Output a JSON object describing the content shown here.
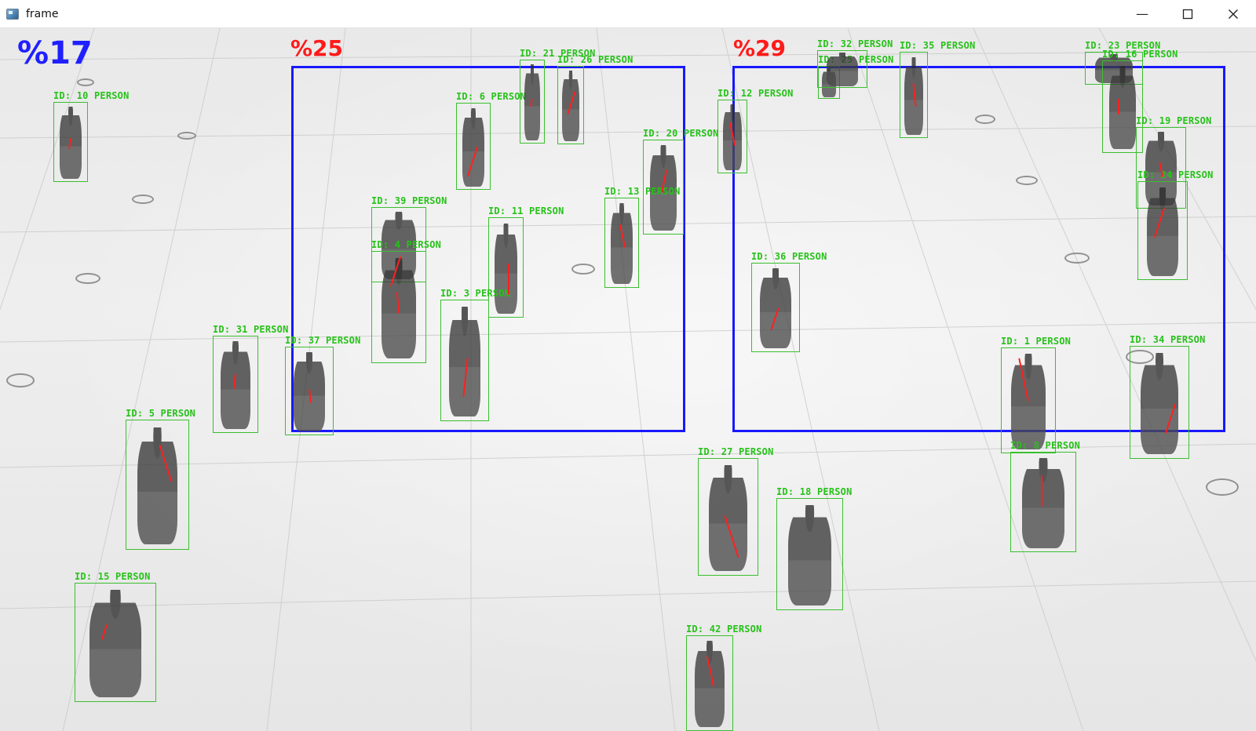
{
  "window": {
    "title": "frame",
    "app_icon": "window-app-icon",
    "controls": {
      "minimize_glyph": "—",
      "maximize_icon": "maximize-icon",
      "close_icon": "close-icon"
    }
  },
  "overlay": {
    "global_density": "%17",
    "zones": [
      {
        "name": "zone-left",
        "density": "%25"
      },
      {
        "name": "zone-right",
        "density": "%29"
      }
    ],
    "colors": {
      "zone_box": "#1818ff",
      "person_box": "#3bbf2f",
      "person_label": "#27c21a",
      "trail": "#ff2020",
      "zone_density": "#ff1a1a",
      "global_density": "#1f1fff"
    }
  },
  "detections": [
    {
      "label": "ID: 10 PERSON"
    },
    {
      "label": "ID: 6 PERSON"
    },
    {
      "label": "ID: 21 PERSON"
    },
    {
      "label": "ID: 26 PERSON"
    },
    {
      "label": "ID: 20 PERSON"
    },
    {
      "label": "ID: 39 PERSON"
    },
    {
      "label": "ID: 11 PERSON"
    },
    {
      "label": "ID: 13 PERSON"
    },
    {
      "label": "ID: 4 PERSON"
    },
    {
      "label": "ID: 3 PERSON"
    },
    {
      "label": "ID: 31 PERSON"
    },
    {
      "label": "ID: 37 PERSON"
    },
    {
      "label": "ID: 5 PERSON"
    },
    {
      "label": "ID: 15 PERSON"
    },
    {
      "label": "ID: 12 PERSON"
    },
    {
      "label": "ID: 25 PERSON"
    },
    {
      "label": "ID: 32 PERSON"
    },
    {
      "label": "ID: 35 PERSON"
    },
    {
      "label": "ID: 23 PERSON"
    },
    {
      "label": "ID: 16 PERSON"
    },
    {
      "label": "ID: 19 PERSON"
    },
    {
      "label": "ID: 24 PERSON"
    },
    {
      "label": "ID: 36 PERSON"
    },
    {
      "label": "ID: 1 PERSON"
    },
    {
      "label": "ID: 34 PERSON"
    },
    {
      "label": "ID: 8 PERSON"
    },
    {
      "label": "ID: 27 PERSON"
    },
    {
      "label": "ID: 18 PERSON"
    },
    {
      "label": "ID: 42 PERSON"
    }
  ]
}
